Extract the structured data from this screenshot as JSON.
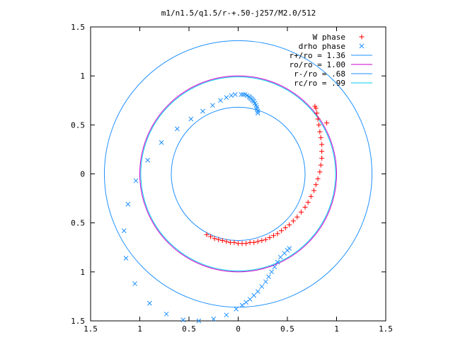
{
  "chart_data": {
    "type": "scatter",
    "title": "m1/n1.5/q1.5/r-+.50-j257/M2.0/512",
    "xlabel": "",
    "ylabel": "",
    "xlim": [
      -1.5,
      1.5
    ],
    "ylim": [
      -1.5,
      1.5
    ],
    "x_tick_labels": [
      "1.5",
      "1",
      "0.5",
      "0",
      "0.5",
      "1",
      "1.5"
    ],
    "x_ticks": [
      -1.5,
      -1,
      -0.5,
      0,
      0.5,
      1,
      1.5
    ],
    "y_tick_labels": [
      "1.5",
      "1",
      "0.5",
      "0",
      "0.5",
      "1",
      "1.5"
    ],
    "y_ticks": [
      1.5,
      1,
      0.5,
      0,
      -0.5,
      -1,
      -1.5
    ],
    "grid": false,
    "legend_placement": "top-right",
    "series": [
      {
        "name": "W phase",
        "marker": "plus",
        "color": "#ff0000",
        "points": [
          [
            -0.32,
            -0.62
          ],
          [
            -0.28,
            -0.64
          ],
          [
            -0.24,
            -0.66
          ],
          [
            -0.2,
            -0.67
          ],
          [
            -0.16,
            -0.68
          ],
          [
            -0.12,
            -0.69
          ],
          [
            -0.08,
            -0.7
          ],
          [
            -0.04,
            -0.7
          ],
          [
            0,
            -0.71
          ],
          [
            0.04,
            -0.71
          ],
          [
            0.08,
            -0.71
          ],
          [
            0.12,
            -0.7
          ],
          [
            0.16,
            -0.7
          ],
          [
            0.2,
            -0.69
          ],
          [
            0.24,
            -0.68
          ],
          [
            0.28,
            -0.67
          ],
          [
            0.32,
            -0.65
          ],
          [
            0.36,
            -0.63
          ],
          [
            0.4,
            -0.61
          ],
          [
            0.44,
            -0.58
          ],
          [
            0.48,
            -0.55
          ],
          [
            0.52,
            -0.52
          ],
          [
            0.56,
            -0.48
          ],
          [
            0.6,
            -0.44
          ],
          [
            0.64,
            -0.39
          ],
          [
            0.68,
            -0.34
          ],
          [
            0.71,
            -0.29
          ],
          [
            0.74,
            -0.23
          ],
          [
            0.77,
            -0.17
          ],
          [
            0.79,
            -0.11
          ],
          [
            0.81,
            -0.05
          ],
          [
            0.83,
            0.02
          ],
          [
            0.84,
            0.09
          ],
          [
            0.85,
            0.16
          ],
          [
            0.85,
            0.23
          ],
          [
            0.85,
            0.3
          ],
          [
            0.84,
            0.37
          ],
          [
            0.83,
            0.43
          ],
          [
            0.82,
            0.5
          ],
          [
            0.81,
            0.56
          ],
          [
            0.8,
            0.62
          ],
          [
            0.79,
            0.67
          ],
          [
            0.78,
            0.69
          ],
          [
            0.9,
            0.52
          ]
        ]
      },
      {
        "name": "drho phase",
        "marker": "cross",
        "color": "#1e90ff",
        "points": [
          [
            0.03,
            0.81
          ],
          [
            0.05,
            0.81
          ],
          [
            0.07,
            0.81
          ],
          [
            0.09,
            0.8
          ],
          [
            0.11,
            0.79
          ],
          [
            0.12,
            0.78
          ],
          [
            0.13,
            0.77
          ],
          [
            0.14,
            0.76
          ],
          [
            0.15,
            0.75
          ],
          [
            0.16,
            0.74
          ],
          [
            0.17,
            0.72
          ],
          [
            0.18,
            0.7
          ],
          [
            0.19,
            0.68
          ],
          [
            0.19,
            0.66
          ],
          [
            0.2,
            0.64
          ],
          [
            0.2,
            0.62
          ],
          [
            -0.03,
            0.81
          ],
          [
            -0.07,
            0.8
          ],
          [
            -0.12,
            0.78
          ],
          [
            -0.18,
            0.75
          ],
          [
            -0.26,
            0.7
          ],
          [
            -0.36,
            0.64
          ],
          [
            -0.48,
            0.56
          ],
          [
            -0.62,
            0.46
          ],
          [
            -0.78,
            0.32
          ],
          [
            -0.92,
            0.14
          ],
          [
            -1.04,
            -0.07
          ],
          [
            -1.12,
            -0.31
          ],
          [
            -1.16,
            -0.58
          ],
          [
            -1.14,
            -0.86
          ],
          [
            -1.05,
            -1.12
          ],
          [
            -0.9,
            -1.32
          ],
          [
            -0.73,
            -1.43
          ],
          [
            -0.56,
            -1.49
          ],
          [
            -0.4,
            -1.5
          ],
          [
            -0.25,
            -1.48
          ],
          [
            -0.12,
            -1.44
          ],
          [
            -0.02,
            -1.38
          ],
          [
            0.04,
            -1.34
          ],
          [
            0.08,
            -1.31
          ],
          [
            0.12,
            -1.28
          ],
          [
            0.16,
            -1.24
          ],
          [
            0.2,
            -1.2
          ],
          [
            0.24,
            -1.15
          ],
          [
            0.28,
            -1.1
          ],
          [
            0.31,
            -1.05
          ],
          [
            0.34,
            -1.0
          ],
          [
            0.37,
            -0.95
          ],
          [
            0.4,
            -0.9
          ],
          [
            0.43,
            -0.85
          ],
          [
            0.47,
            -0.81
          ],
          [
            0.5,
            -0.78
          ],
          [
            0.52,
            -0.76
          ]
        ]
      }
    ],
    "circles": [
      {
        "name": "r+/ro = 1.36",
        "radius": 1.36,
        "color": "#1e90ff"
      },
      {
        "name": "ro/ro = 1.00",
        "radius": 1.0,
        "color": "#cc00cc"
      },
      {
        "name": "r-/ro = .68",
        "radius": 0.68,
        "color": "#1e90ff"
      },
      {
        "name": "rc/ro = .99",
        "radius": 0.99,
        "color": "#00ccee"
      }
    ],
    "legend": [
      {
        "label": "W phase",
        "marker": "plus",
        "color": "#ff0000"
      },
      {
        "label": "drho phase",
        "marker": "cross",
        "color": "#1e90ff"
      },
      {
        "label": "r+/ro = 1.36",
        "line": true,
        "color": "#1e90ff"
      },
      {
        "label": "ro/ro = 1.00",
        "line": true,
        "color": "#cc00cc"
      },
      {
        "label": "r-/ro = .68",
        "line": true,
        "color": "#1e90ff"
      },
      {
        "label": "rc/ro = .99",
        "line": true,
        "color": "#00ccee"
      }
    ]
  }
}
